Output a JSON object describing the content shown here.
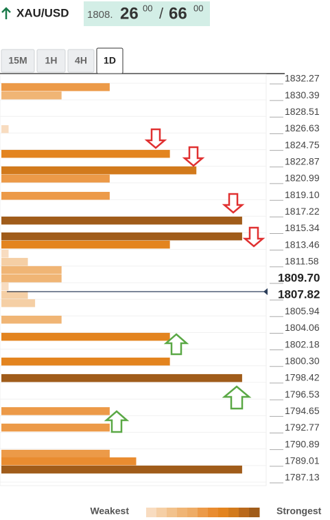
{
  "header": {
    "symbol": "XAU/USD",
    "price_prefix": "1808.",
    "bid_big": "26",
    "bid_small": "00",
    "separator": "/",
    "ask_big": "66",
    "ask_small": "00"
  },
  "tabs": [
    "15M",
    "1H",
    "4H",
    "1D"
  ],
  "active_tab": 3,
  "chart_data": {
    "type": "bar",
    "orientation": "horizontal",
    "ylim": [
      1786.35,
      1832.89
    ],
    "xlim": [
      0,
      11
    ],
    "yticks": [
      1832.27,
      1830.39,
      1828.51,
      1826.63,
      1824.75,
      1822.87,
      1820.99,
      {
        "value": 1819.1,
        "label": "1819.10"
      },
      1817.22,
      1815.34,
      1813.46,
      1811.58,
      {
        "value": 1809.7,
        "label": "1809.70",
        "bold": true
      },
      {
        "value": 1807.82,
        "label": "1807.82",
        "bold": true
      },
      1805.94,
      1804.06,
      1802.18,
      {
        "value": 1800.3,
        "label": "1800.30"
      },
      1798.42,
      1796.53,
      1794.65,
      1792.77,
      1790.89,
      1789.01,
      1787.13
    ],
    "bar_levels": [
      1831.34,
      1830.4,
      1826.59,
      1823.79,
      1821.92,
      1820.99,
      1819.04,
      1816.24,
      1814.45,
      1813.52,
      1812.5,
      1811.57,
      1810.64,
      1809.7,
      1808.77,
      1807.83,
      1806.9,
      1805.03,
      1803.09,
      1800.29,
      1798.42,
      1794.68,
      1792.82,
      1789.86,
      1789.0,
      1788.07
    ],
    "values": [
      4.5,
      2.5,
      0.3,
      7,
      8.1,
      4.5,
      4.5,
      10,
      10,
      7,
      0.3,
      1.1,
      2.5,
      2.5,
      0.3,
      1.1,
      1.4,
      2.5,
      7,
      7,
      10,
      4.5,
      4.5,
      4.5,
      5.6,
      10
    ],
    "colors": [
      "#f8dcc0",
      "#f5cfa5",
      "#f2c28c",
      "#f0b575",
      "#eeac66",
      "#ec9a48",
      "#e98c30",
      "#e3841f",
      "#d27a1c",
      "#b9691c",
      "#a05c1a"
    ]
  },
  "legend": {
    "weakest": "Weakest",
    "strongest": "Strongest"
  }
}
